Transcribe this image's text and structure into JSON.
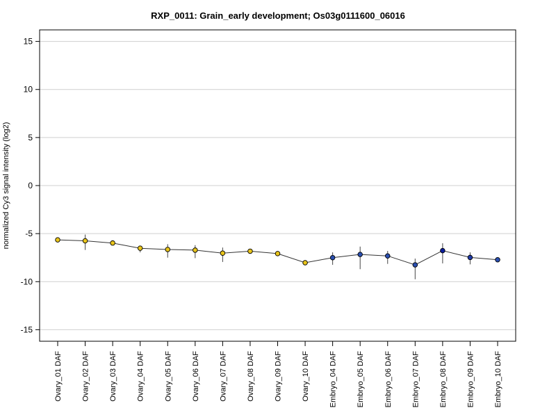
{
  "chart_data": {
    "type": "line",
    "title": "RXP_0011: Grain_early development; Os03g0111600_06016",
    "xlabel": "",
    "ylabel": "normalized Cy3 signal intensity (log2)",
    "ylim": [
      -16.2,
      16.2
    ],
    "yticks": [
      -15,
      -10,
      -5,
      0,
      5,
      10,
      15
    ],
    "grid": true,
    "legend": "none",
    "line_color": "#333333",
    "categories": [
      "Ovary_01 DAF",
      "Ovary_02 DAF",
      "Ovary_03 DAF",
      "Ovary_04 DAF",
      "Ovary_05 DAF",
      "Ovary_06 DAF",
      "Ovary_07 DAF",
      "Ovary_08 DAF",
      "Ovary_09 DAF",
      "Ovary_10 DAF",
      "Embryo_04 DAF",
      "Embryo_05 DAF",
      "Embryo_06 DAF",
      "Embryo_07 DAF",
      "Embryo_08 DAF",
      "Embryo_09 DAF",
      "Embryo_10 DAF"
    ],
    "values": [
      -5.65,
      -5.75,
      -5.98,
      -6.52,
      -6.65,
      -6.72,
      -7.03,
      -6.83,
      -7.08,
      -8.03,
      -7.5,
      -7.17,
      -7.32,
      -8.25,
      -6.77,
      -7.48,
      -7.72
    ],
    "error_low": [
      -5.85,
      -6.7,
      -6.1,
      -6.95,
      -7.5,
      -7.55,
      -7.95,
      -6.95,
      -7.2,
      -8.15,
      -8.25,
      -8.7,
      -8.15,
      -9.75,
      -8.1,
      -8.2,
      -7.95
    ],
    "error_high": [
      -5.45,
      -5.1,
      -5.8,
      -6.3,
      -6.1,
      -6.2,
      -6.45,
      -6.7,
      -6.95,
      -7.9,
      -6.95,
      -6.35,
      -6.8,
      -7.6,
      -6.0,
      -6.95,
      -7.5
    ],
    "point_colors": [
      "#e8c41a",
      "#e8c41a",
      "#e8c41a",
      "#e8c41a",
      "#e8c41a",
      "#e8c41a",
      "#e8c41a",
      "#e8c41a",
      "#e8c41a",
      "#e8c41a",
      "#2a4fb0",
      "#2a4fb0",
      "#2a4fb0",
      "#2a4fb0",
      "#0b1e9c",
      "#1f3aa8",
      "#2a4fb0"
    ]
  }
}
